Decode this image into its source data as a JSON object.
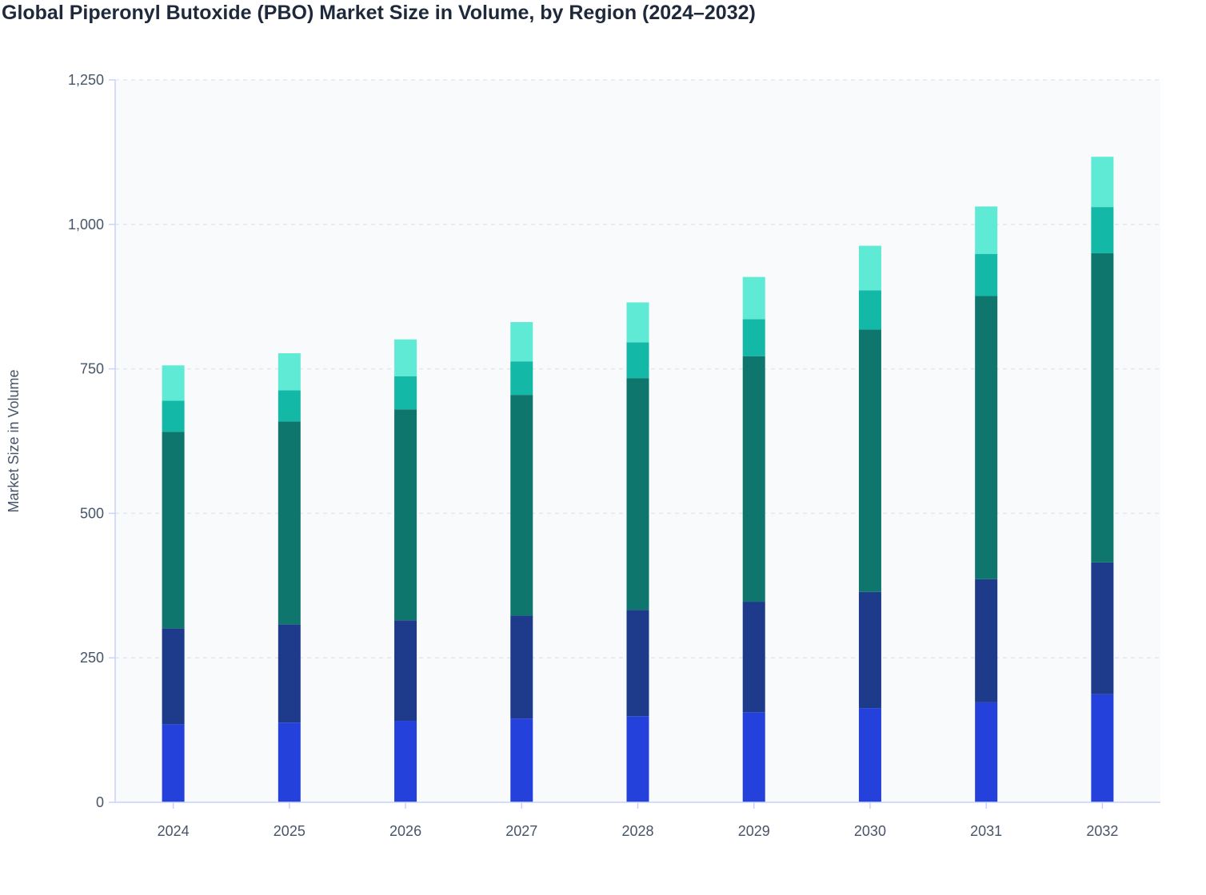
{
  "chart_data": {
    "type": "bar",
    "stacked": true,
    "title": "Global Piperonyl Butoxide (PBO) Market Size in Volume, by Region (2024–2032)",
    "xlabel": "",
    "ylabel": "Market Size in Volume",
    "categories": [
      "2024",
      "2025",
      "2026",
      "2027",
      "2028",
      "2029",
      "2030",
      "2031",
      "2032"
    ],
    "ylim": [
      0,
      1250
    ],
    "yticks": [
      0,
      250,
      500,
      750,
      1000,
      1250
    ],
    "ytick_labels": [
      "0",
      "250",
      "500",
      "750",
      "1,000",
      "1,250"
    ],
    "grid": true,
    "legend": "none",
    "series": [
      {
        "color": "#2541dc",
        "values": [
          135,
          138,
          141,
          145,
          149,
          156,
          163,
          173,
          187
        ]
      },
      {
        "color": "#1e3a8a",
        "values": [
          166,
          170,
          174,
          178,
          184,
          191,
          201,
          213,
          228
        ]
      },
      {
        "color": "#0f766e",
        "values": [
          340,
          351,
          365,
          382,
          401,
          425,
          454,
          490,
          535
        ]
      },
      {
        "color": "#14b8a6",
        "values": [
          54,
          54,
          57,
          58,
          62,
          64,
          68,
          73,
          80
        ]
      },
      {
        "color": "#5eead4",
        "values": [
          61,
          64,
          64,
          68,
          69,
          73,
          77,
          82,
          87
        ]
      }
    ]
  }
}
